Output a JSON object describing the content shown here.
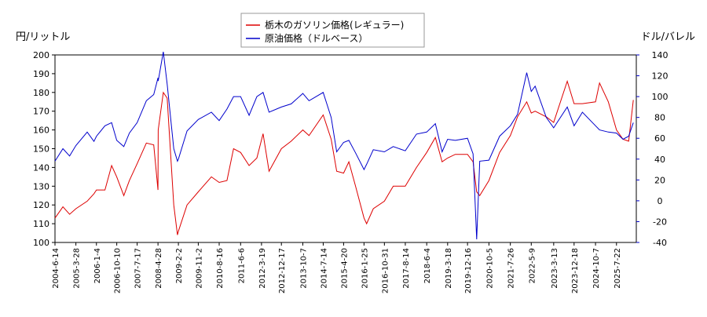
{
  "chart_data": {
    "type": "line",
    "y_label": "円/リットル",
    "y2_label": "ドル/バレル",
    "x": [
      "2004-6-14",
      "2004-10-1",
      "2005-1-1",
      "2005-3-28",
      "2005-8-30",
      "2005-12-1",
      "2006-1-4",
      "2006-5-1",
      "2006-8-1",
      "2006-10-10",
      "2007-1-15",
      "2007-4-1",
      "2007-7-17",
      "2007-11-20",
      "2008-3-1",
      "2008-4-28",
      "2008-5-1",
      "2008-7-10",
      "2008-9-1",
      "2008-12-1",
      "2009-1-20",
      "2009-2-2",
      "2009-6-1",
      "2009-11-2",
      "2010-5-1",
      "2010-8-16",
      "2010-12-1",
      "2011-3-1",
      "2011-6-6",
      "2011-10-1",
      "2012-1-15",
      "2012-4-10",
      "2012-7-1",
      "2012-12-17",
      "2013-5-1",
      "2013-10-7",
      "2014-1-1",
      "2014-7-14",
      "2014-11-1",
      "2015-1-15",
      "2015-4-20",
      "2015-7-1",
      "2015-10-1",
      "2016-1-25",
      "2016-3-1",
      "2016-6-1",
      "2016-10-31",
      "2017-3-1",
      "2017-8-14",
      "2018-1-15",
      "2018-6-4",
      "2018-10-1",
      "2019-1-1",
      "2019-3-18",
      "2019-7-1",
      "2019-12-16",
      "2020-3-1",
      "2020-4-20",
      "2020-6-1",
      "2020-10-5",
      "2021-3-1",
      "2021-7-26",
      "2021-11-1",
      "2022-3-8",
      "2022-5-9",
      "2022-7-1",
      "2022-12-1",
      "2023-3-13",
      "2023-9-15",
      "2023-12-18",
      "2024-4-10",
      "2024-10-7",
      "2024-12-1",
      "2025-4-1",
      "2025-7-22",
      "2025-10-20",
      "2026-1-5",
      "2026-3-10"
    ],
    "series": [
      {
        "name": "栃木のガソリン価格(レギュラー)",
        "color": "#dd0000",
        "axis": "y",
        "values": [
          113,
          119,
          115,
          118,
          122,
          126,
          128,
          128,
          141,
          135,
          125,
          133,
          142,
          153,
          152,
          128,
          160,
          180,
          177,
          120,
          104,
          106,
          120,
          127,
          135,
          132,
          133,
          150,
          148,
          141,
          145,
          158,
          138,
          150,
          154,
          160,
          157,
          168,
          155,
          138,
          137,
          143,
          130,
          113,
          110,
          118,
          122,
          130,
          130,
          140,
          148,
          156,
          143,
          145,
          147,
          147,
          143,
          127,
          125,
          133,
          148,
          157,
          167,
          175,
          169,
          170,
          167,
          164,
          186,
          174,
          174,
          175,
          185,
          175,
          160,
          155,
          154,
          176
        ]
      },
      {
        "name": "原油価格（ドルベース）",
        "color": "#0000cc",
        "axis": "y2",
        "values": [
          38,
          50,
          43,
          53,
          66,
          57,
          62,
          72,
          75,
          58,
          52,
          65,
          75,
          96,
          102,
          118,
          115,
          143,
          112,
          50,
          38,
          40,
          67,
          78,
          85,
          77,
          88,
          100,
          100,
          82,
          100,
          104,
          85,
          90,
          93,
          103,
          96,
          104,
          80,
          47,
          56,
          58,
          46,
          30,
          35,
          49,
          47,
          52,
          48,
          64,
          66,
          74,
          47,
          59,
          58,
          60,
          45,
          -37,
          38,
          39,
          62,
          72,
          83,
          123,
          105,
          110,
          80,
          70,
          90,
          72,
          85,
          72,
          68,
          66,
          65,
          59,
          62,
          75
        ]
      }
    ],
    "xlim": [
      "2004-6-14",
      "2026-4-20"
    ],
    "xticks": [
      "2004-6-14",
      "2005-3-28",
      "2006-1-4",
      "2006-10-10",
      "2007-7-17",
      "2008-4-28",
      "2009-2-2",
      "2009-11-2",
      "2010-8-16",
      "2011-6-6",
      "2012-3-19",
      "2012-12-17",
      "2013-10-7",
      "2014-7-14",
      "2015-4-20",
      "2016-1-25",
      "2016-10-31",
      "2017-8-14",
      "2018-6-4",
      "2019-3-18",
      "2019-12-16",
      "2020-10-5",
      "2021-7-26",
      "2022-5-9",
      "2023-3-13",
      "2023-12-18",
      "2024-10-7",
      "2025-7-22"
    ],
    "ylim": [
      100,
      200
    ],
    "yticks": [
      100,
      110,
      120,
      130,
      140,
      150,
      160,
      170,
      180,
      190,
      200
    ],
    "y2lim": [
      -40,
      140
    ],
    "y2ticks": [
      -40,
      -20,
      0,
      20,
      40,
      60,
      80,
      100,
      120,
      140
    ]
  }
}
